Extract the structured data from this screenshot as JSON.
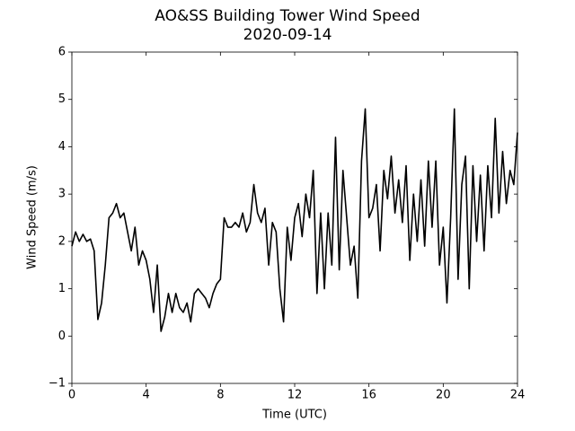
{
  "chart_data": {
    "type": "line",
    "title": "AO&SS Building Tower Wind Speed",
    "subtitle": "2020-09-14",
    "x_label": "Time (UTC)",
    "y_label": "Wind Speed (m/s)",
    "color": "#000000",
    "x": [
      0,
      0.2,
      0.4,
      0.6,
      0.8,
      1,
      1.2,
      1.4,
      1.6,
      1.8,
      2,
      2.2,
      2.4,
      2.6,
      2.8,
      3,
      3.2,
      3.4,
      3.6,
      3.8,
      4,
      4.2,
      4.4,
      4.6,
      4.8,
      5,
      5.2,
      5.4,
      5.6,
      5.8,
      6,
      6.2,
      6.4,
      6.6,
      6.8,
      7,
      7.2,
      7.4,
      7.6,
      7.8,
      8,
      8.2,
      8.4,
      8.6,
      8.8,
      9,
      9.2,
      9.4,
      9.6,
      9.8,
      10,
      10.2,
      10.4,
      10.6,
      10.8,
      11,
      11.2,
      11.4,
      11.6,
      11.8,
      12,
      12.2,
      12.4,
      12.6,
      12.8,
      13,
      13.2,
      13.4,
      13.6,
      13.8,
      14,
      14.2,
      14.4,
      14.6,
      14.8,
      15,
      15.2,
      15.4,
      15.6,
      15.8,
      16,
      16.2,
      16.4,
      16.6,
      16.8,
      17,
      17.2,
      17.4,
      17.6,
      17.8,
      18,
      18.2,
      18.4,
      18.6,
      18.8,
      19,
      19.2,
      19.4,
      19.6,
      19.8,
      20,
      20.2,
      20.4,
      20.6,
      20.8,
      21,
      21.2,
      21.4,
      21.6,
      21.8,
      22,
      22.2,
      22.4,
      22.6,
      22.8,
      23,
      23.2,
      23.4,
      23.6,
      23.8,
      24
    ],
    "values": [
      1.9,
      2.2,
      2.0,
      2.15,
      2.0,
      2.05,
      1.8,
      0.35,
      0.7,
      1.5,
      2.5,
      2.6,
      2.8,
      2.5,
      2.6,
      2.2,
      1.8,
      2.3,
      1.5,
      1.8,
      1.6,
      1.2,
      0.5,
      1.5,
      0.1,
      0.4,
      0.9,
      0.5,
      0.9,
      0.6,
      0.5,
      0.7,
      0.3,
      0.9,
      1.0,
      0.9,
      0.8,
      0.6,
      0.9,
      1.1,
      1.2,
      2.5,
      2.3,
      2.3,
      2.4,
      2.3,
      2.6,
      2.2,
      2.4,
      3.2,
      2.6,
      2.4,
      2.7,
      1.5,
      2.4,
      2.2,
      1.0,
      0.3,
      2.3,
      1.6,
      2.5,
      2.8,
      2.1,
      3.0,
      2.5,
      3.5,
      0.9,
      2.6,
      1.0,
      2.6,
      1.5,
      4.2,
      1.4,
      3.5,
      2.5,
      1.5,
      1.9,
      0.8,
      3.7,
      4.8,
      2.5,
      2.7,
      3.2,
      1.8,
      3.5,
      2.9,
      3.8,
      2.6,
      3.3,
      2.4,
      3.6,
      1.6,
      3.0,
      2.0,
      3.3,
      1.9,
      3.7,
      2.3,
      3.7,
      1.5,
      2.3,
      0.7,
      2.5,
      4.8,
      1.2,
      3.2,
      3.8,
      1.0,
      3.6,
      2.0,
      3.4,
      1.8,
      3.6,
      2.5,
      4.6,
      2.6,
      3.9,
      2.8,
      3.5,
      3.2,
      4.3
    ],
    "xlim": [
      0,
      24
    ],
    "xticks": [
      0,
      4,
      8,
      12,
      16,
      20,
      24
    ],
    "ylim": [
      -1,
      6
    ],
    "yticks": [
      {
        "value": -1,
        "label": "−1"
      },
      0,
      1,
      2,
      3,
      4,
      5,
      6
    ]
  }
}
